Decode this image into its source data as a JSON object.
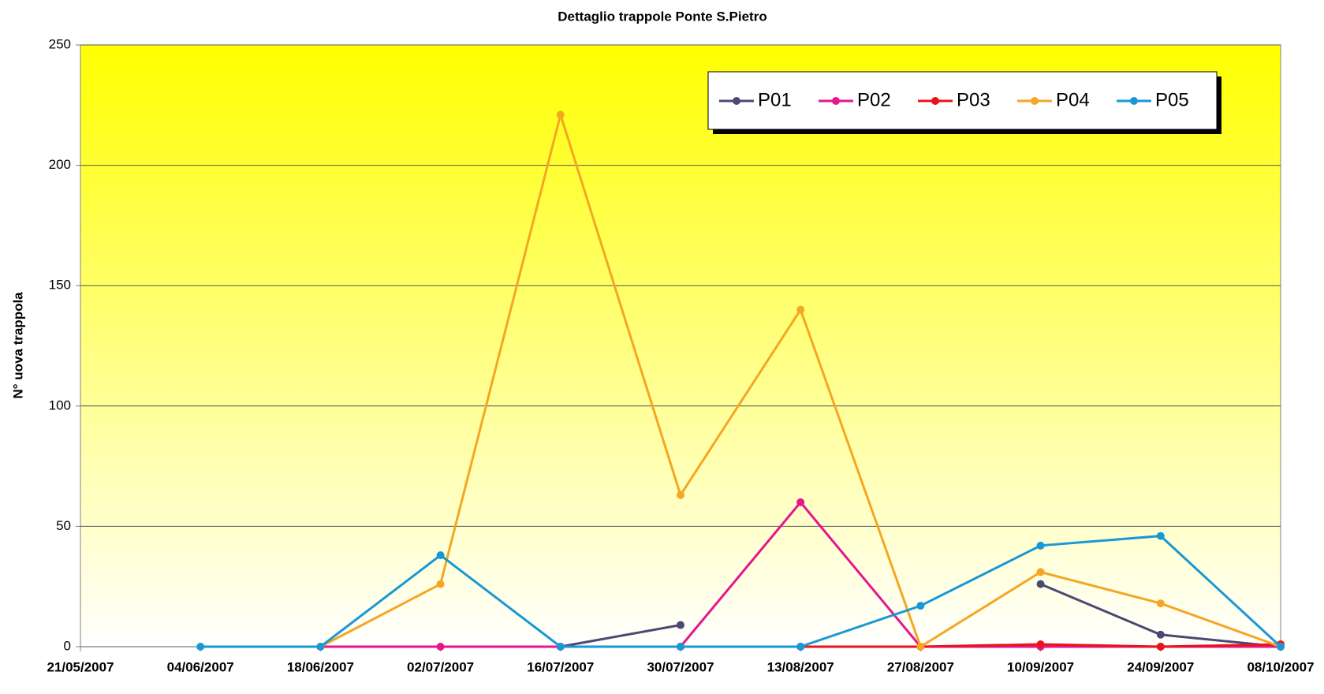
{
  "chart_data": {
    "type": "line",
    "title": "Dettaglio trappole Ponte S.Pietro",
    "y_label": "N° uova trappola",
    "categories": [
      "21/05/2007",
      "04/06/2007",
      "18/06/2007",
      "02/07/2007",
      "16/07/2007",
      "30/07/2007",
      "13/08/2007",
      "27/08/2007",
      "10/09/2007",
      "24/09/2007",
      "08/10/2007"
    ],
    "series": [
      {
        "name": "P01",
        "color": "#4d4872",
        "values": [
          null,
          null,
          null,
          null,
          0,
          9,
          null,
          null,
          26,
          5,
          0
        ]
      },
      {
        "name": "P02",
        "color": "#e6168c",
        "values": [
          null,
          null,
          0,
          0,
          0,
          0,
          60,
          0,
          0,
          0,
          0
        ]
      },
      {
        "name": "P03",
        "color": "#e8141c",
        "values": [
          null,
          null,
          null,
          null,
          null,
          0,
          0,
          0,
          1,
          0,
          1
        ]
      },
      {
        "name": "P04",
        "color": "#f5a623",
        "values": [
          null,
          null,
          0,
          26,
          221,
          63,
          140,
          0,
          31,
          18,
          0
        ]
      },
      {
        "name": "P05",
        "color": "#1a98d5",
        "values": [
          null,
          0,
          0,
          38,
          0,
          0,
          0,
          17,
          42,
          46,
          0
        ]
      }
    ],
    "ylim": [
      0,
      250
    ],
    "yticks": [
      0,
      50,
      100,
      150,
      200,
      250
    ],
    "grid": true,
    "legend": "upper right"
  }
}
